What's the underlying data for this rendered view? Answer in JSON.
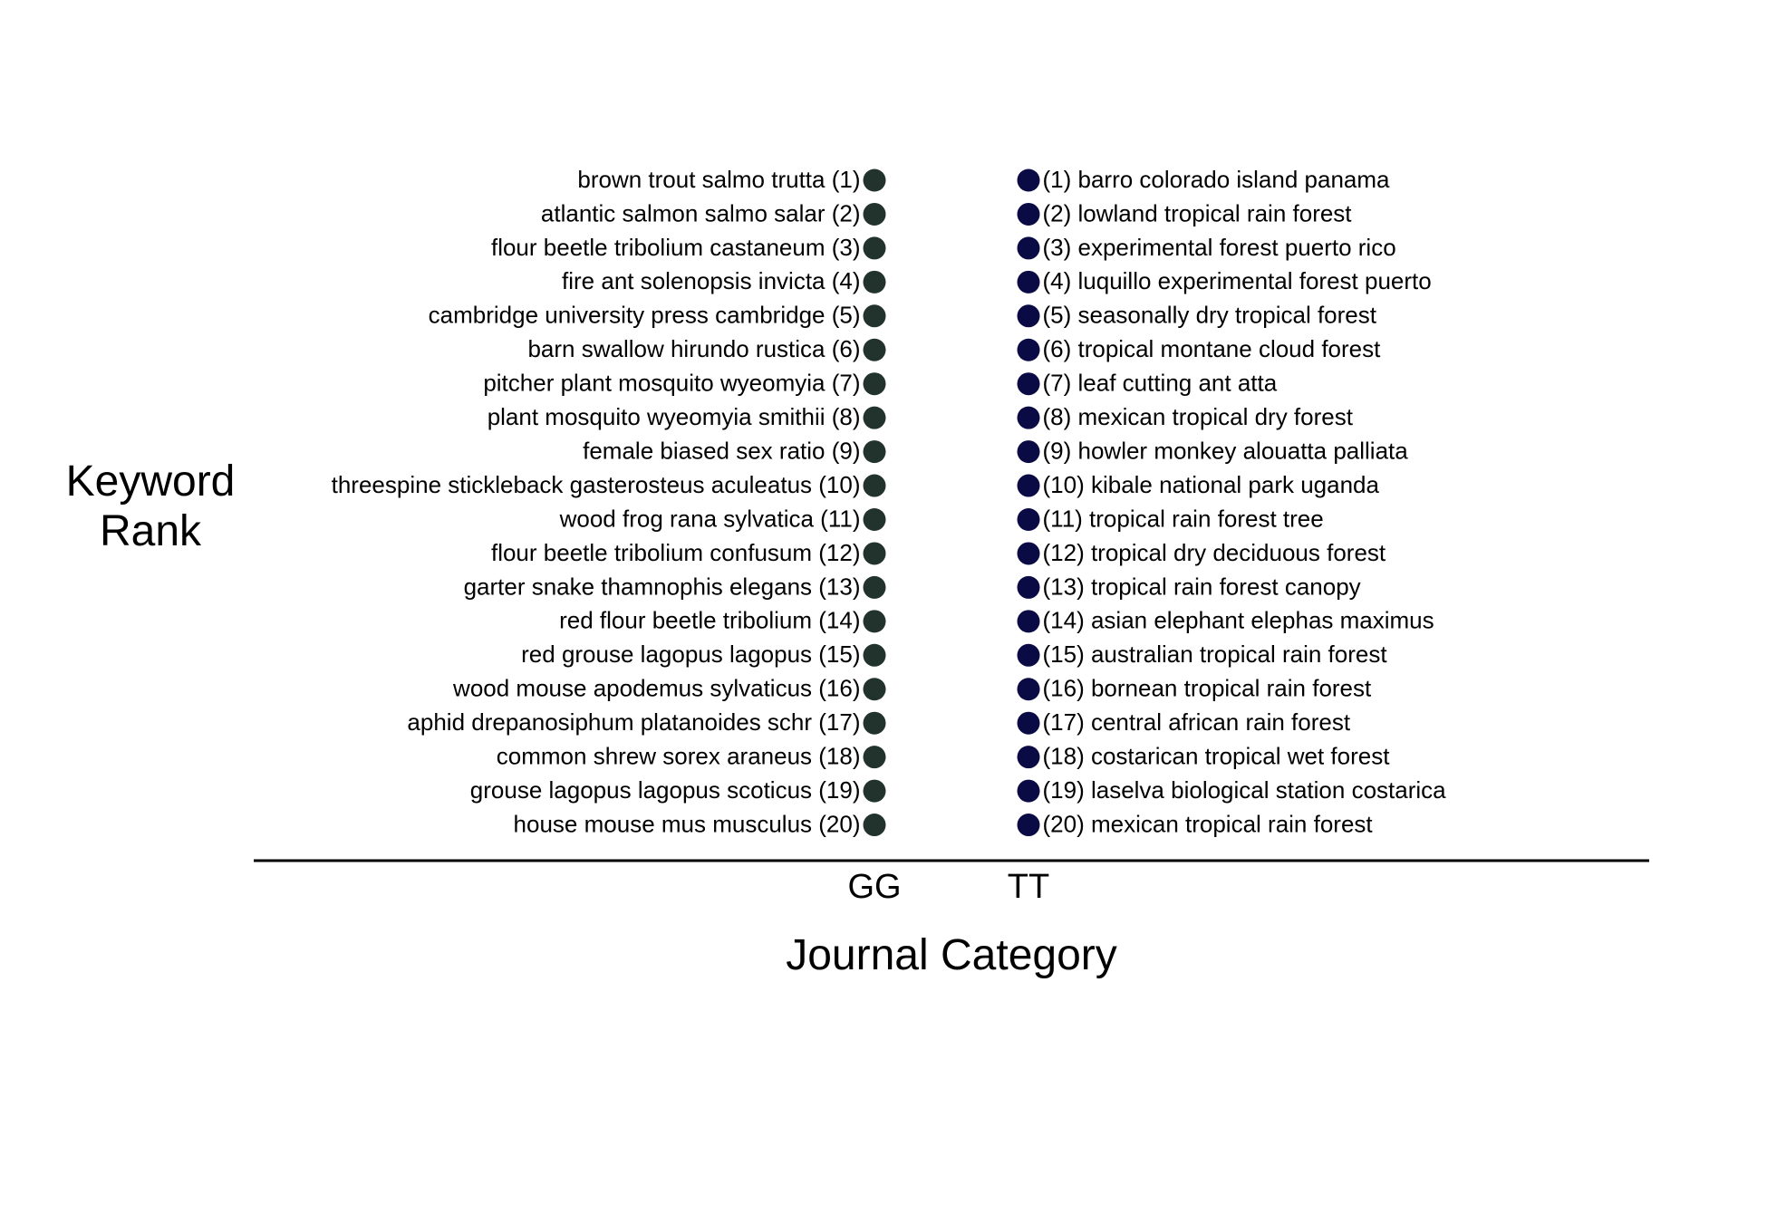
{
  "chart_data": {
    "type": "scatter",
    "ylabel_lines": [
      "Keyword",
      "Rank"
    ],
    "xlabel": "Journal Category",
    "categories": [
      "GG",
      "TT"
    ],
    "colors": {
      "GG": "#22332e",
      "TT": "#0a0a45"
    },
    "series": [
      {
        "category": "GG",
        "ranks": [
          1,
          2,
          3,
          4,
          5,
          6,
          7,
          8,
          9,
          10,
          11,
          12,
          13,
          14,
          15,
          16,
          17,
          18,
          19,
          20
        ],
        "labels": [
          "brown trout salmo trutta (1)",
          "atlantic salmon salmo salar (2)",
          "flour beetle tribolium castaneum (3)",
          "fire ant solenopsis invicta (4)",
          "cambridge university press cambridge (5)",
          "barn swallow hirundo rustica (6)",
          "pitcher plant mosquito wyeomyia (7)",
          "plant mosquito wyeomyia smithii (8)",
          "female biased sex ratio (9)",
          "threespine stickleback gasterosteus aculeatus (10)",
          "wood frog rana sylvatica (11)",
          "flour beetle tribolium confusum (12)",
          "garter snake thamnophis elegans (13)",
          "red flour beetle tribolium (14)",
          "red grouse lagopus lagopus (15)",
          "wood mouse apodemus sylvaticus (16)",
          "aphid drepanosiphum platanoides schr (17)",
          "common shrew sorex araneus (18)",
          "grouse lagopus lagopus scoticus (19)",
          "house mouse mus musculus (20)"
        ]
      },
      {
        "category": "TT",
        "ranks": [
          1,
          2,
          3,
          4,
          5,
          6,
          7,
          8,
          9,
          10,
          11,
          12,
          13,
          14,
          15,
          16,
          17,
          18,
          19,
          20
        ],
        "labels": [
          "(1) barro colorado island panama",
          "(2) lowland tropical rain forest",
          "(3) experimental forest puerto rico",
          "(4) luquillo experimental forest puerto",
          "(5) seasonally dry tropical forest",
          "(6) tropical montane cloud forest",
          "(7) leaf cutting ant atta",
          "(8) mexican tropical dry forest",
          "(9) howler monkey alouatta palliata",
          "(10) kibale national park uganda",
          "(11) tropical rain forest tree",
          "(12) tropical dry deciduous forest",
          "(13) tropical rain forest canopy",
          "(14) asian elephant elephas maximus",
          "(15) australian tropical rain forest",
          "(16) bornean tropical rain forest",
          "(17) central african rain forest",
          "(18) costarican tropical wet forest",
          "(19) laselva biological station costarica",
          "(20) mexican tropical rain forest"
        ]
      }
    ]
  }
}
